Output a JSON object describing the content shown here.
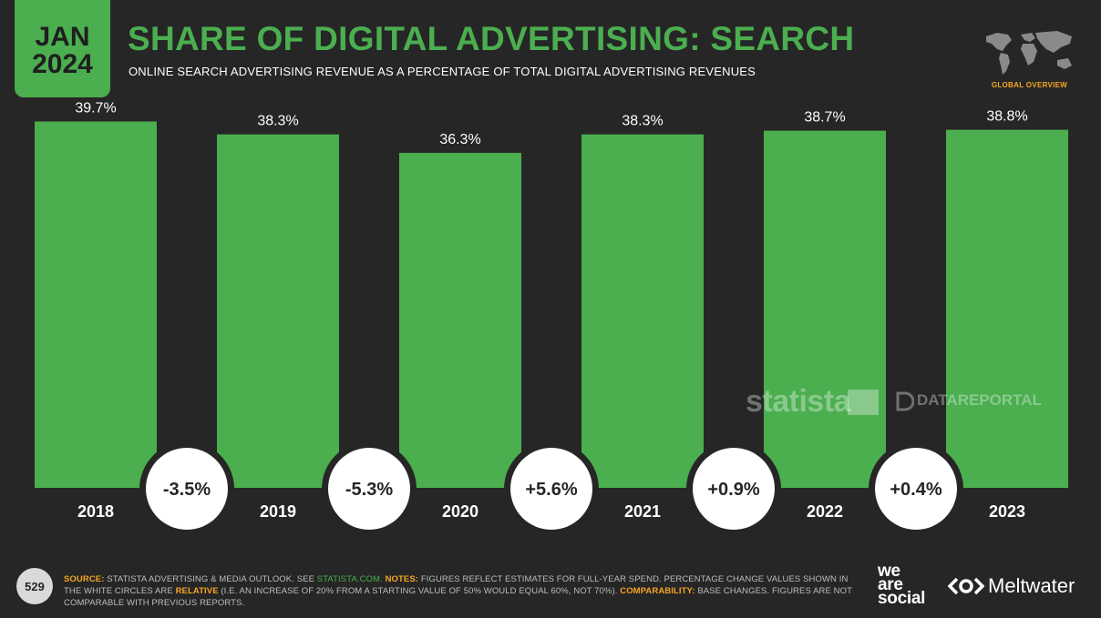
{
  "header": {
    "date_month": "JAN",
    "date_year": "2024",
    "title": "SHARE OF DIGITAL ADVERTISING: SEARCH",
    "subtitle": "ONLINE SEARCH ADVERTISING REVENUE AS A PERCENTAGE OF TOTAL DIGITAL ADVERTISING REVENUES",
    "region_label": "GLOBAL OVERVIEW"
  },
  "chart_data": {
    "type": "bar",
    "title": "SHARE OF DIGITAL ADVERTISING: SEARCH",
    "categories": [
      "2018",
      "2019",
      "2020",
      "2021",
      "2022",
      "2023"
    ],
    "values": [
      39.7,
      38.3,
      36.3,
      38.3,
      38.7,
      38.8
    ],
    "value_labels": [
      "39.7%",
      "38.3%",
      "36.3%",
      "38.3%",
      "38.7%",
      "38.8%"
    ],
    "change_labels": [
      "-3.5%",
      "-5.3%",
      "+5.6%",
      "+0.9%",
      "+0.4%"
    ],
    "ylim": [
      0,
      43
    ],
    "grid": false,
    "bar_color": "#4bae4f"
  },
  "watermarks": {
    "statista": "statista",
    "datareportal": "DATAREPORTAL"
  },
  "footer": {
    "page_number": "529",
    "source_label": "SOURCE:",
    "source_text": "STATISTA ADVERTISING & MEDIA OUTLOOK. SEE",
    "source_link": "STATISTA.COM.",
    "notes_label": "NOTES:",
    "notes_text": "FIGURES REFLECT ESTIMATES FOR FULL-YEAR SPEND. PERCENTAGE CHANGE VALUES SHOWN IN THE WHITE CIRCLES ARE",
    "relative_label": "RELATIVE",
    "relative_text": "(I.E. AN INCREASE OF 20% FROM A STARTING VALUE OF 50% WOULD EQUAL 60%, NOT 70%).",
    "comparability_label": "COMPARABILITY:",
    "comparability_text": "BASE CHANGES. FIGURES ARE NOT COMPARABLE WITH PREVIOUS REPORTS.",
    "brand_line1": "we",
    "brand_line2": "are",
    "brand_line3": "social",
    "partner": "Meltwater"
  },
  "colors": {
    "accent": "#4bae4f",
    "background": "#262626",
    "highlight": "#f6a623"
  }
}
